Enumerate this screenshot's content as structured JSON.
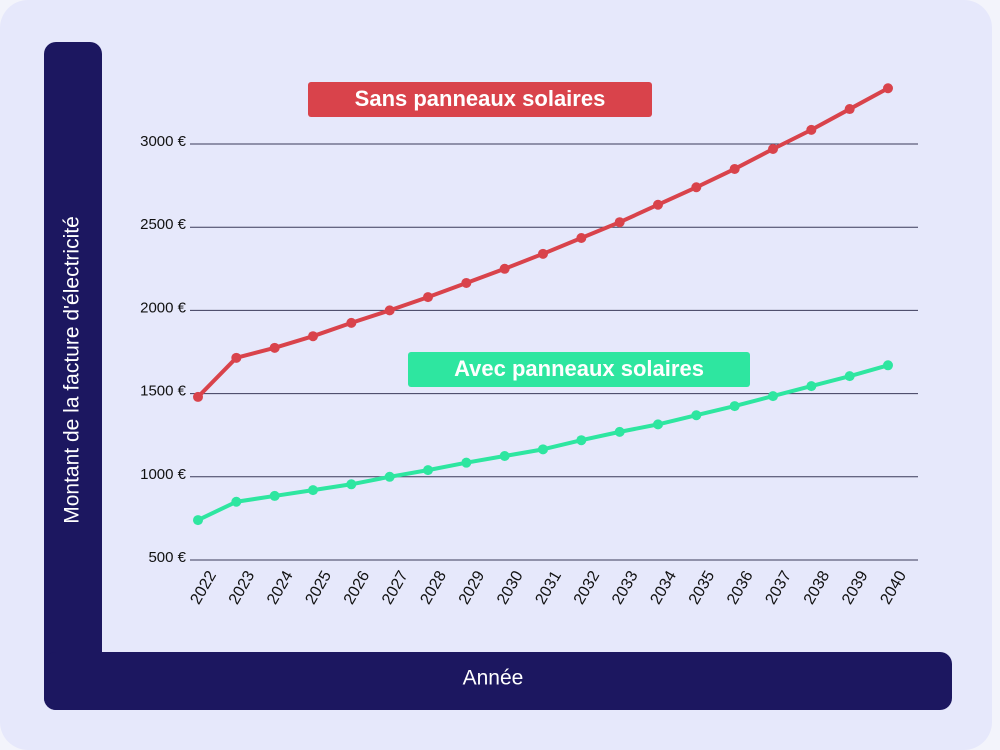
{
  "chart_data": {
    "type": "line",
    "y_label": "Montant de la facture d'électricité",
    "x_label": "Année",
    "categories": [
      "2022",
      "2023",
      "2024",
      "2025",
      "2026",
      "2027",
      "2028",
      "2029",
      "2030",
      "2031",
      "2032",
      "2033",
      "2034",
      "2035",
      "2036",
      "2037",
      "2038",
      "2039",
      "2040"
    ],
    "series": [
      {
        "name": "Sans panneaux solaires",
        "color": "#d9434b",
        "values": [
          1480,
          1715,
          1775,
          1845,
          1925,
          2000,
          2080,
          2165,
          2250,
          2340,
          2435,
          2530,
          2635,
          2740,
          2850,
          2970,
          3085,
          3210,
          3335
        ]
      },
      {
        "name": "Avec panneaux solaires",
        "color": "#2ee6a0",
        "values": [
          740,
          850,
          885,
          920,
          955,
          1000,
          1040,
          1085,
          1125,
          1165,
          1220,
          1270,
          1315,
          1370,
          1425,
          1485,
          1545,
          1605,
          1670
        ]
      }
    ],
    "ylim": [
      500,
      3000
    ],
    "yticks": [
      {
        "value": 500,
        "label": "500 €"
      },
      {
        "value": 1000,
        "label": "1000 €"
      },
      {
        "value": 1500,
        "label": "1500 €"
      },
      {
        "value": 2000,
        "label": "2000 €"
      },
      {
        "value": 2500,
        "label": "2500 €"
      },
      {
        "value": 3000,
        "label": "3000 €"
      }
    ],
    "grid": true
  }
}
